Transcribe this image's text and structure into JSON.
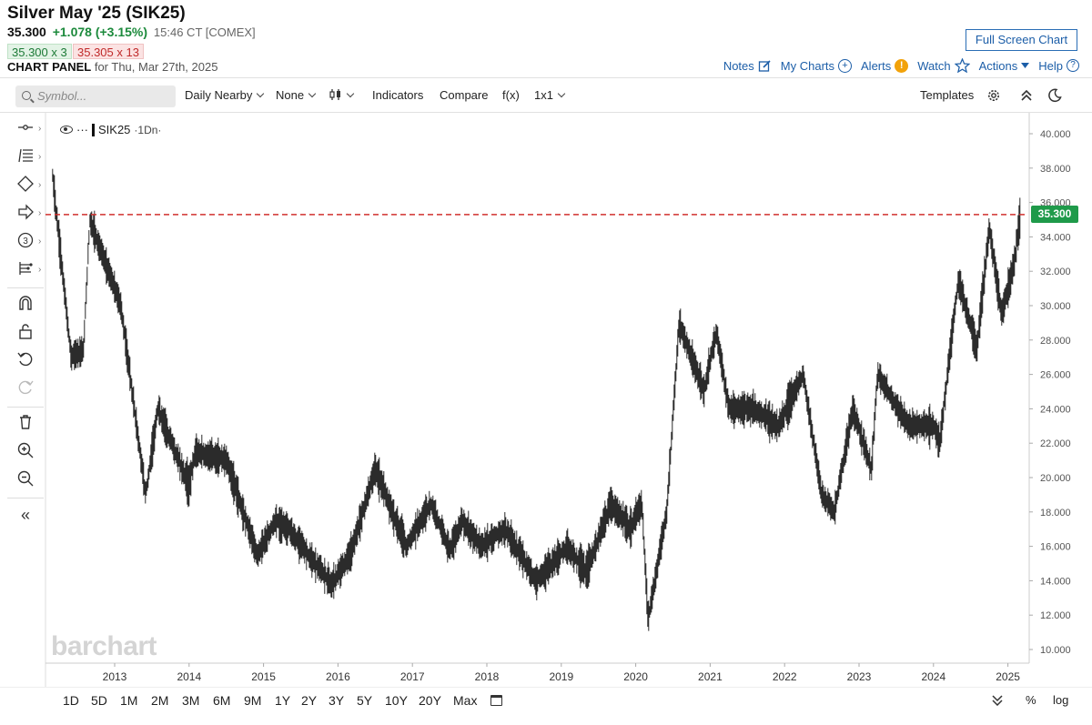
{
  "header": {
    "title": "Silver May '25 (SIK25)",
    "price": "35.300",
    "change": "+1.078 (+3.15%)",
    "time": "15:46 CT [COMEX]",
    "bid": "35.300 x 3",
    "ask": "35.305 x 13",
    "panel_label": "CHART PANEL",
    "panel_date": "for Thu, Mar 27th, 2025",
    "fullscreen": "Full Screen Chart",
    "links": {
      "notes": "Notes",
      "mycharts": "My Charts",
      "alerts": "Alerts",
      "watch": "Watch",
      "actions": "Actions",
      "help": "Help"
    }
  },
  "toolbar": {
    "search_placeholder": "Symbol...",
    "period": "Daily Nearby",
    "overlay": "None",
    "indicators": "Indicators",
    "compare": "Compare",
    "fx": "f(x)",
    "layout": "1x1",
    "templates": "Templates"
  },
  "legend": {
    "dots": "···",
    "symbol": "SIK25",
    "interval": "·1Dn·"
  },
  "watermark": "barchart",
  "last_price_tag": "35.300",
  "colors": {
    "up": "#1c8a3c",
    "down": "#c02a2a",
    "price_line": "#d0302f",
    "tag": "#1f9a4a",
    "link": "#1c5ea8"
  },
  "bottom": {
    "ranges": [
      "1D",
      "5D",
      "1M",
      "2M",
      "3M",
      "6M",
      "9M",
      "1Y",
      "2Y",
      "3Y",
      "5Y",
      "10Y",
      "20Y",
      "Max"
    ],
    "percent": "%",
    "log": "log"
  },
  "chart_data": {
    "type": "line",
    "series": [
      {
        "x": [
          "2012-03",
          "2012-06",
          "2012-08",
          "2012-09",
          "2013-02",
          "2013-06",
          "2013-08",
          "2014-01",
          "2014-02",
          "2014-07",
          "2014-12",
          "2015-03",
          "2015-05",
          "2015-12",
          "2016-03",
          "2016-07",
          "2016-12",
          "2017-04",
          "2017-07",
          "2017-09",
          "2017-12",
          "2018-04",
          "2018-09",
          "2019-02",
          "2019-05",
          "2019-09",
          "2019-12",
          "2020-02",
          "2020-03",
          "2020-06",
          "2020-08",
          "2020-12",
          "2021-02",
          "2021-04",
          "2021-08",
          "2021-12",
          "2022-04",
          "2022-07",
          "2022-09",
          "2022-12",
          "2023-03",
          "2023-04",
          "2023-09",
          "2024-01",
          "2024-02",
          "2024-05",
          "2024-08",
          "2024-10",
          "2024-12",
          "2025-02",
          "2025-03"
        ],
        "values": [
          37.5,
          27.0,
          27.5,
          35.0,
          30.0,
          19.0,
          24.0,
          19.5,
          21.5,
          21.0,
          15.5,
          17.5,
          17.0,
          13.8,
          15.5,
          20.5,
          16.0,
          18.5,
          15.8,
          17.5,
          16.0,
          17.0,
          14.0,
          16.0,
          14.5,
          18.5,
          17.0,
          18.5,
          11.7,
          18.0,
          29.0,
          25.0,
          28.5,
          24.0,
          24.0,
          23.0,
          26.0,
          19.0,
          18.0,
          24.0,
          20.5,
          26.0,
          23.0,
          23.0,
          22.0,
          31.5,
          27.5,
          34.5,
          29.5,
          32.5,
          35.3
        ]
      }
    ],
    "x_tick_labels": [
      "2013",
      "2014",
      "2015",
      "2016",
      "2017",
      "2018",
      "2019",
      "2020",
      "2021",
      "2022",
      "2023",
      "2024",
      "2025"
    ],
    "y_tick_labels": [
      "10.000",
      "12.000",
      "14.000",
      "16.000",
      "18.000",
      "20.000",
      "22.000",
      "24.000",
      "26.000",
      "28.000",
      "30.000",
      "32.000",
      "34.000",
      "36.000",
      "38.000",
      "40.000"
    ],
    "ylim": [
      10,
      40
    ],
    "x_range": [
      "2012-03",
      "2025-03"
    ],
    "reference_line": 35.3,
    "grid": false
  }
}
